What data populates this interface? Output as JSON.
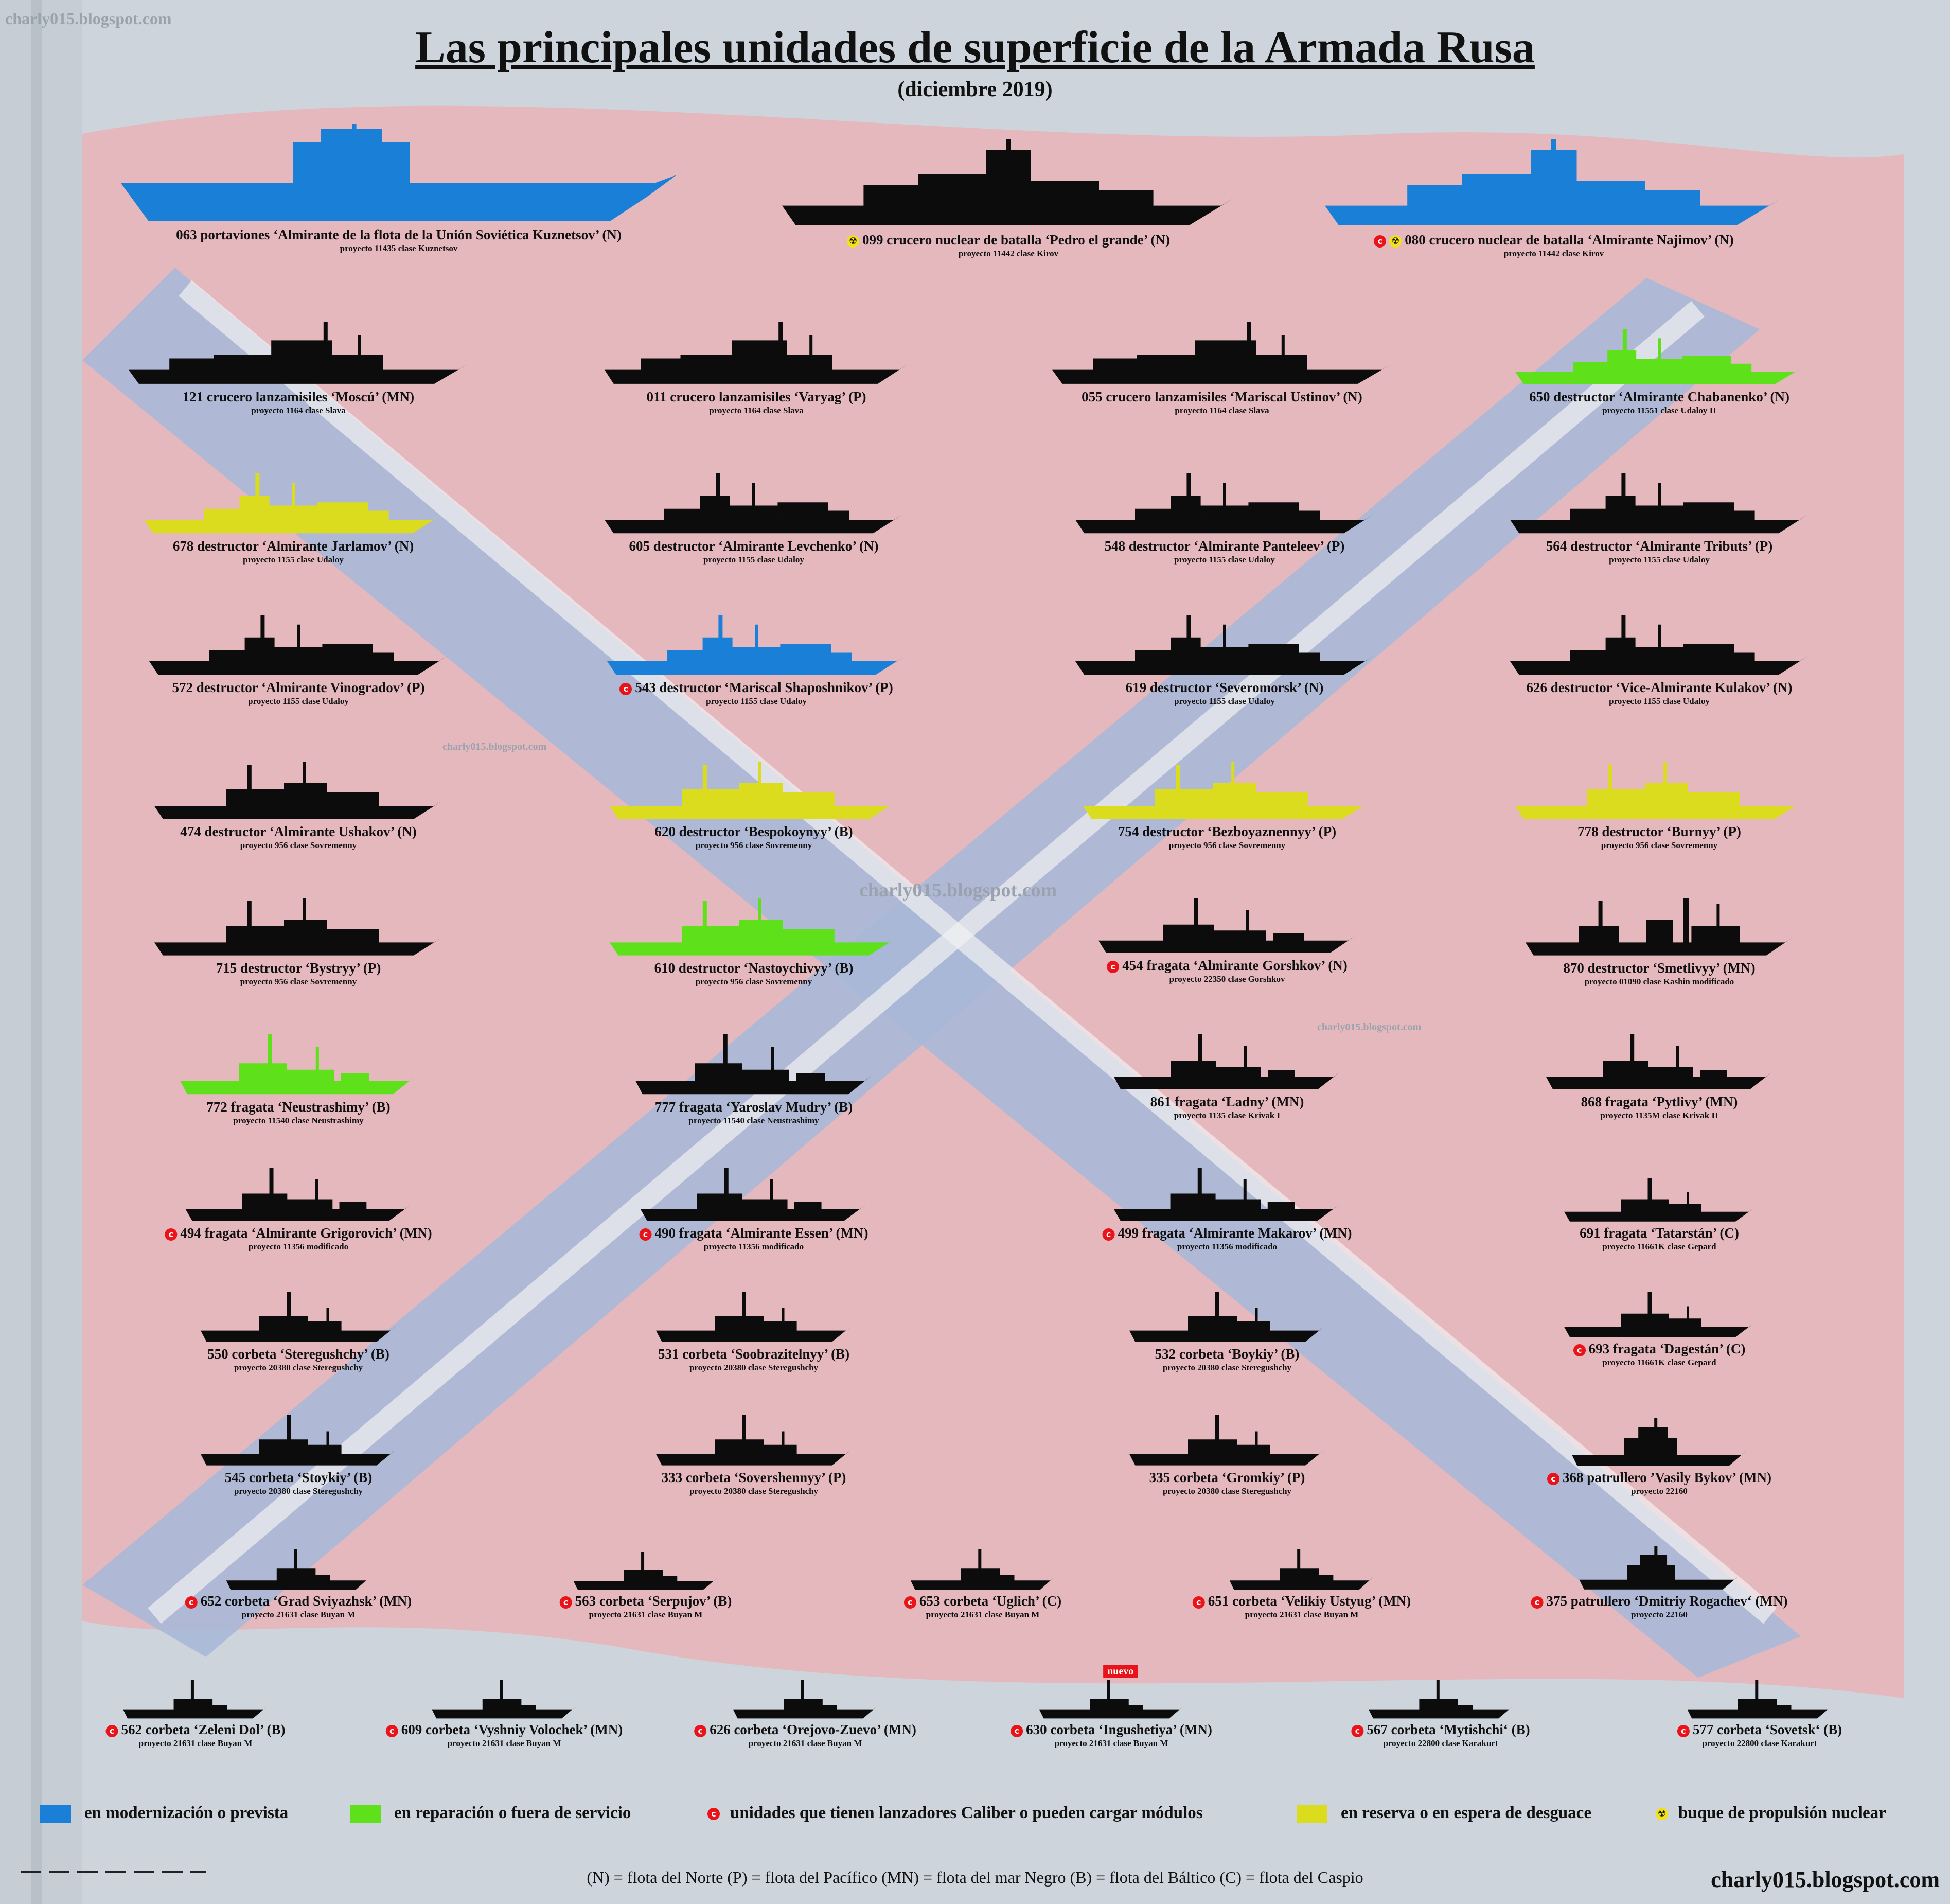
{
  "header": {
    "watermark": "charly015.blogspot.com",
    "title": "Las principales unidades de superficie de la Armada Rusa",
    "subtitle": "(diciembre 2019)"
  },
  "colors": {
    "black": "#0c0c0c",
    "blue": "#1a7fd6",
    "green": "#5ee01a",
    "yellow": "#dcdc1e",
    "caliber_badge": "#e8141a",
    "nuclear_badge": "#f2e21a"
  },
  "ships": [
    {
      "caption": "063 portaviones ‘Almirante de la flota de la Unión Soviética Kuznetsov’ (N)",
      "sub": "proyecto 11435 clase Kuznetsov",
      "color": "blue",
      "caliber": false,
      "nuclear": false
    },
    {
      "caption": "099 crucero nuclear de batalla ‘Pedro el grande’ (N)",
      "sub": "proyecto 11442 clase Kirov",
      "color": "black",
      "caliber": false,
      "nuclear": true
    },
    {
      "caption": "080 crucero nuclear de batalla ‘Almirante Najimov’ (N)",
      "sub": "proyecto 11442 clase Kirov",
      "color": "blue",
      "caliber": true,
      "nuclear": true
    },
    {
      "caption": "121 crucero lanzamisiles ‘Moscú’ (MN)",
      "sub": "proyecto 1164 clase Slava",
      "color": "black",
      "caliber": false,
      "nuclear": false
    },
    {
      "caption": "011 crucero lanzamisiles ‘Varyag’ (P)",
      "sub": "proyecto 1164 clase Slava",
      "color": "black",
      "caliber": false,
      "nuclear": false
    },
    {
      "caption": "055 crucero lanzamisiles ‘Mariscal Ustinov’ (N)",
      "sub": "proyecto 1164 clase Slava",
      "color": "black",
      "caliber": false,
      "nuclear": false
    },
    {
      "caption": "650 destructor ‘Almirante Chabanenko’ (N)",
      "sub": "proyecto 11551 clase Udaloy II",
      "color": "green",
      "caliber": false,
      "nuclear": false
    },
    {
      "caption": "678 destructor ‘Almirante Jarlamov’ (N)",
      "sub": "proyecto 1155 clase Udaloy",
      "color": "yellow",
      "caliber": false,
      "nuclear": false
    },
    {
      "caption": "605 destructor ‘Almirante Levchenko’ (N)",
      "sub": "proyecto 1155 clase Udaloy",
      "color": "black",
      "caliber": false,
      "nuclear": false
    },
    {
      "caption": "548 destructor ‘Almirante Panteleev’ (P)",
      "sub": "proyecto 1155 clase Udaloy",
      "color": "black",
      "caliber": false,
      "nuclear": false
    },
    {
      "caption": "564 destructor ‘Almirante Tributs’ (P)",
      "sub": "proyecto 1155 clase Udaloy",
      "color": "black",
      "caliber": false,
      "nuclear": false
    },
    {
      "caption": "572 destructor ‘Almirante Vinogradov’ (P)",
      "sub": "proyecto 1155 clase Udaloy",
      "color": "black",
      "caliber": false,
      "nuclear": false
    },
    {
      "caption": "543 destructor ‘Mariscal Shaposhnikov’ (P)",
      "sub": "proyecto 1155 clase Udaloy",
      "color": "blue",
      "caliber": true,
      "nuclear": false
    },
    {
      "caption": "619 destructor ‘Severomorsk’ (N)",
      "sub": "proyecto 1155 clase Udaloy",
      "color": "black",
      "caliber": false,
      "nuclear": false
    },
    {
      "caption": "626 destructor ‘Vice-Almirante Kulakov’ (N)",
      "sub": "proyecto 1155 clase Udaloy",
      "color": "black",
      "caliber": false,
      "nuclear": false
    },
    {
      "caption": "474 destructor ‘Almirante Ushakov’ (N)",
      "sub": "proyecto 956 clase Sovremenny",
      "color": "black",
      "caliber": false,
      "nuclear": false
    },
    {
      "caption": "620 destructor ‘Bespokoynyy’ (B)",
      "sub": "proyecto 956 clase Sovremenny",
      "color": "yellow",
      "caliber": false,
      "nuclear": false
    },
    {
      "caption": "754 destructor ‘Bezboyaznennyy’ (P)",
      "sub": "proyecto 956 clase Sovremenny",
      "color": "yellow",
      "caliber": false,
      "nuclear": false
    },
    {
      "caption": "778 destructor ‘Burnyy’ (P)",
      "sub": "proyecto 956 clase Sovremenny",
      "color": "yellow",
      "caliber": false,
      "nuclear": false
    },
    {
      "caption": "715 destructor ‘Bystryy’ (P)",
      "sub": "proyecto 956 clase Sovremenny",
      "color": "black",
      "caliber": false,
      "nuclear": false
    },
    {
      "caption": "610 destructor ‘Nastoychivyy’ (B)",
      "sub": "proyecto 956 clase Sovremenny",
      "color": "green",
      "caliber": false,
      "nuclear": false
    },
    {
      "caption": "454 fragata ‘Almirante Gorshkov’ (N)",
      "sub": "proyecto 22350 clase Gorshkov",
      "color": "black",
      "caliber": true,
      "nuclear": false
    },
    {
      "caption": "870 destructor ‘Smetlivyy’ (MN)",
      "sub": "proyecto 01090 clase Kashin modificado",
      "color": "black",
      "caliber": false,
      "nuclear": false
    },
    {
      "caption": "772 fragata ‘Neustrashimy’ (B)",
      "sub": "proyecto 11540 clase Neustrashimy",
      "color": "green",
      "caliber": false,
      "nuclear": false
    },
    {
      "caption": "777 fragata ‘Yaroslav Mudry’ (B)",
      "sub": "proyecto 11540 clase Neustrashimy",
      "color": "black",
      "caliber": false,
      "nuclear": false
    },
    {
      "caption": "861 fragata ‘Ladny’ (MN)",
      "sub": "proyecto 1135 clase Krivak I",
      "color": "black",
      "caliber": false,
      "nuclear": false
    },
    {
      "caption": "868 fragata ‘Pytlivy’ (MN)",
      "sub": "proyecto 1135M clase Krivak II",
      "color": "black",
      "caliber": false,
      "nuclear": false
    },
    {
      "caption": "494 fragata ‘Almirante Grigorovich’ (MN)",
      "sub": "proyecto 11356 modificado",
      "color": "black",
      "caliber": true,
      "nuclear": false
    },
    {
      "caption": "490 fragata ‘Almirante Essen’ (MN)",
      "sub": "proyecto 11356 modificado",
      "color": "black",
      "caliber": true,
      "nuclear": false
    },
    {
      "caption": "499 fragata ‘Almirante Makarov’ (MN)",
      "sub": "proyecto 11356 modificado",
      "color": "black",
      "caliber": true,
      "nuclear": false
    },
    {
      "caption": "691 fragata ‘Tatarstán’ (C)",
      "sub": "proyecto 11661K clase Gepard",
      "color": "black",
      "caliber": false,
      "nuclear": false
    },
    {
      "caption": "550 corbeta ‘Steregushchy’ (B)",
      "sub": "proyecto 20380 clase Steregushchy",
      "color": "black",
      "caliber": false,
      "nuclear": false
    },
    {
      "caption": "531 corbeta ‘Soobrazitelnyy’ (B)",
      "sub": "proyecto 20380 clase Steregushchy",
      "color": "black",
      "caliber": false,
      "nuclear": false
    },
    {
      "caption": "532 corbeta ‘Boykiy’ (B)",
      "sub": "proyecto 20380 clase Steregushchy",
      "color": "black",
      "caliber": false,
      "nuclear": false
    },
    {
      "caption": "693 fragata ‘Dagestán’ (C)",
      "sub": "proyecto 11661K clase Gepard",
      "color": "black",
      "caliber": true,
      "nuclear": false
    },
    {
      "caption": "545 corbeta ‘Stoykiy’ (B)",
      "sub": "proyecto 20380 clase Steregushchy",
      "color": "black",
      "caliber": false,
      "nuclear": false
    },
    {
      "caption": "333 corbeta ‘Sovershennyy’ (P)",
      "sub": "proyecto 20380 clase Steregushchy",
      "color": "black",
      "caliber": false,
      "nuclear": false
    },
    {
      "caption": "335 corbeta ‘Gromkiy’ (P)",
      "sub": "proyecto 20380 clase Steregushchy",
      "color": "black",
      "caliber": false,
      "nuclear": false
    },
    {
      "caption": "368 patrullero ’Vasily Bykov’ (MN)",
      "sub": "proyecto 22160",
      "color": "black",
      "caliber": true,
      "nuclear": false
    },
    {
      "caption": "652 corbeta ‘Grad Sviyazhsk’ (MN)",
      "sub": "proyecto 21631 clase Buyan M",
      "color": "black",
      "caliber": true,
      "nuclear": false
    },
    {
      "caption": "563 corbeta ‘Serpujov’ (B)",
      "sub": "proyecto 21631 clase Buyan M",
      "color": "black",
      "caliber": true,
      "nuclear": false
    },
    {
      "caption": "653 corbeta ‘Uglich’ (C)",
      "sub": "proyecto 21631 clase Buyan M",
      "color": "black",
      "caliber": true,
      "nuclear": false
    },
    {
      "caption": "651 corbeta ‘Velikiy Ustyug’ (MN)",
      "sub": "proyecto 21631 clase Buyan M",
      "color": "black",
      "caliber": true,
      "nuclear": false
    },
    {
      "caption": "375 patrullero ‘Dmitriy Rogachev‘ (MN)",
      "sub": "proyecto 22160",
      "color": "black",
      "caliber": true,
      "nuclear": false
    },
    {
      "caption": "562 corbeta ‘Zeleni Dol’ (B)",
      "sub": "proyecto 21631 clase Buyan M",
      "color": "black",
      "caliber": true,
      "nuclear": false
    },
    {
      "caption": "609 corbeta ‘Vyshniy Volochek’ (MN)",
      "sub": "proyecto 21631 clase Buyan M",
      "color": "black",
      "caliber": true,
      "nuclear": false
    },
    {
      "caption": "626 corbeta ‘Orejovo-Zuevo’ (MN)",
      "sub": "proyecto 21631 clase Buyan M",
      "color": "black",
      "caliber": true,
      "nuclear": false
    },
    {
      "caption": "630 corbeta ‘Ingushetiya’ (MN)",
      "sub": "proyecto 21631 clase Buyan M",
      "color": "black",
      "caliber": true,
      "nuclear": false,
      "new_label": "nuevo"
    },
    {
      "caption": "567 corbeta ‘Mytishchi‘ (B)",
      "sub": "proyecto 22800 clase Karakurt",
      "color": "black",
      "caliber": true,
      "nuclear": false
    },
    {
      "caption": "577 corbeta ‘Sovetsk‘ (B)",
      "sub": "proyecto 22800 clase Karakurt",
      "color": "black",
      "caliber": true,
      "nuclear": false
    }
  ],
  "legend": {
    "blue": "en modernización o prevista",
    "green": "en reparación o fuera de servicio",
    "caliber": "unidades que tienen lanzadores Caliber o pueden cargar módulos",
    "yellow": "en reserva o en espera de desguace",
    "nuclear": "buque de propulsión nuclear"
  },
  "footer": {
    "fleets": "(N) = flota del Norte    (P) = flota del Pacífico    (MN) = flota del mar Negro    (B) = flota del Báltico    (C) = flota del Caspio",
    "site": "charly015.blogspot.com"
  }
}
